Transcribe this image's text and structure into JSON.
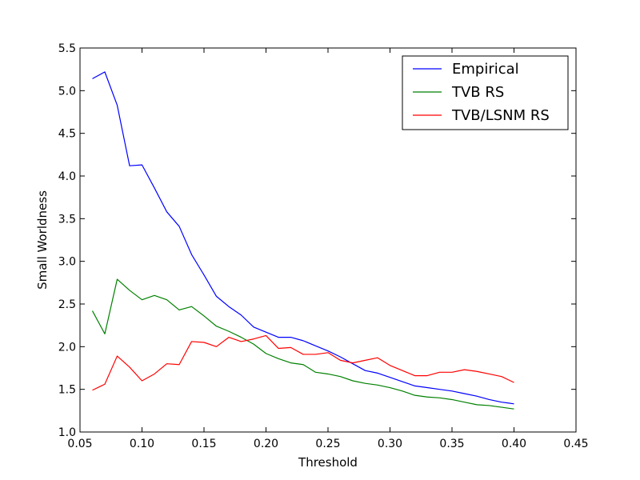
{
  "chart_data": {
    "type": "line",
    "xlabel": "Threshold",
    "ylabel": "Small Worldness",
    "xlim": [
      0.05,
      0.45
    ],
    "ylim": [
      1.0,
      5.5
    ],
    "xticks": [
      "0.05",
      "0.10",
      "0.15",
      "0.20",
      "0.25",
      "0.30",
      "0.35",
      "0.40",
      "0.45"
    ],
    "yticks": [
      "1.0",
      "1.5",
      "2.0",
      "2.5",
      "3.0",
      "3.5",
      "4.0",
      "4.5",
      "5.0",
      "5.5"
    ],
    "grid": false,
    "legend_position": "top-right",
    "x": [
      0.06,
      0.07,
      0.08,
      0.09,
      0.1,
      0.11,
      0.12,
      0.13,
      0.14,
      0.15,
      0.16,
      0.17,
      0.18,
      0.19,
      0.2,
      0.21,
      0.22,
      0.23,
      0.24,
      0.25,
      0.26,
      0.27,
      0.28,
      0.29,
      0.3,
      0.31,
      0.32,
      0.33,
      0.34,
      0.35,
      0.36,
      0.37,
      0.38,
      0.39,
      0.4
    ],
    "series": [
      {
        "name": "Empirical",
        "color": "#0000ff",
        "values": [
          5.14,
          5.22,
          4.83,
          4.12,
          4.13,
          3.86,
          3.58,
          3.41,
          3.08,
          2.84,
          2.59,
          2.47,
          2.37,
          2.23,
          2.17,
          2.11,
          2.11,
          2.07,
          2.01,
          1.95,
          1.88,
          1.8,
          1.72,
          1.69,
          1.64,
          1.59,
          1.54,
          1.52,
          1.5,
          1.48,
          1.45,
          1.42,
          1.38,
          1.35,
          1.33
        ]
      },
      {
        "name": "TVB RS",
        "color": "#008000",
        "values": [
          2.42,
          2.15,
          2.79,
          2.66,
          2.55,
          2.6,
          2.55,
          2.43,
          2.47,
          2.36,
          2.24,
          2.18,
          2.11,
          2.03,
          1.92,
          1.86,
          1.81,
          1.79,
          1.7,
          1.68,
          1.65,
          1.6,
          1.57,
          1.55,
          1.52,
          1.48,
          1.43,
          1.41,
          1.4,
          1.38,
          1.35,
          1.32,
          1.31,
          1.29,
          1.27
        ]
      },
      {
        "name": "TVB/LSNM RS",
        "color": "#ff0000",
        "values": [
          1.49,
          1.56,
          1.89,
          1.76,
          1.6,
          1.68,
          1.8,
          1.79,
          2.06,
          2.05,
          2.0,
          2.11,
          2.06,
          2.09,
          2.13,
          1.98,
          1.99,
          1.91,
          1.91,
          1.93,
          1.84,
          1.81,
          1.84,
          1.87,
          1.78,
          1.72,
          1.66,
          1.66,
          1.7,
          1.7,
          1.73,
          1.71,
          1.68,
          1.65,
          1.58
        ]
      }
    ]
  }
}
